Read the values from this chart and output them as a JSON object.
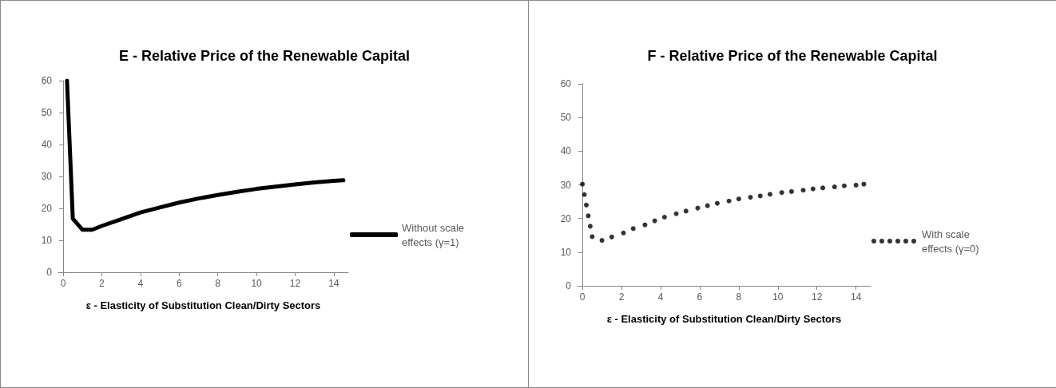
{
  "chart_data": [
    {
      "type": "line",
      "title": "E - Relative Price of the Renewable Capital",
      "xlabel": "ε - Elasticity of Substitution Clean/Dirty Sectors",
      "xlim": [
        -0.25,
        14.75
      ],
      "xticks": [
        0,
        2,
        4,
        6,
        8,
        10,
        12,
        14
      ],
      "ylim": [
        0,
        60
      ],
      "yticks": [
        0,
        10,
        20,
        30,
        40,
        50,
        60
      ],
      "grid": false,
      "legend": "right",
      "marker": "none",
      "line_style": "solid",
      "series": [
        {
          "name": "Without scale effects (γ=1)",
          "color": "#000000",
          "x": [
            0.2,
            0.5,
            1,
            1.5,
            2,
            3,
            4,
            5,
            6,
            7,
            8,
            9,
            10,
            11,
            12,
            13,
            14,
            14.5
          ],
          "values": [
            60,
            16.8,
            13.3,
            13.3,
            14.5,
            16.6,
            18.7,
            20.3,
            21.8,
            23.1,
            24.2,
            25.2,
            26.1,
            26.8,
            27.5,
            28.1,
            28.6,
            28.8
          ]
        }
      ]
    },
    {
      "type": "scatter",
      "title": "F - Relative Price of the Renewable Capital",
      "xlabel": "ε - Elasticity of Substitution Clean/Dirty Sectors",
      "xlim": [
        -0.25,
        14.75
      ],
      "xticks": [
        0,
        2,
        4,
        6,
        8,
        10,
        12,
        14
      ],
      "ylim": [
        0,
        60
      ],
      "yticks": [
        0,
        10,
        20,
        30,
        40,
        50,
        60
      ],
      "grid": false,
      "legend": "right",
      "marker": "circle",
      "series": [
        {
          "name": "With scale effects (γ=0)",
          "color": "#000000",
          "x": [
            0,
            0.1,
            0.2,
            0.3,
            0.4,
            0.5,
            1,
            1.5,
            2.1,
            2.6,
            3.2,
            3.7,
            4.2,
            4.8,
            5.3,
            5.9,
            6.4,
            6.9,
            7.5,
            8,
            8.6,
            9.1,
            9.6,
            10.2,
            10.7,
            11.3,
            11.8,
            12.3,
            12.9,
            13.4,
            14,
            14.4
          ],
          "values": [
            30.2,
            27.1,
            24,
            20.8,
            17.7,
            14.6,
            13.5,
            14.5,
            15.7,
            17,
            18.1,
            19.3,
            20.4,
            21.4,
            22.2,
            23.1,
            23.8,
            24.5,
            25.2,
            25.8,
            26.3,
            26.7,
            27.2,
            27.7,
            28,
            28.4,
            28.8,
            29.1,
            29.4,
            29.7,
            29.9,
            30.2
          ]
        }
      ]
    }
  ]
}
